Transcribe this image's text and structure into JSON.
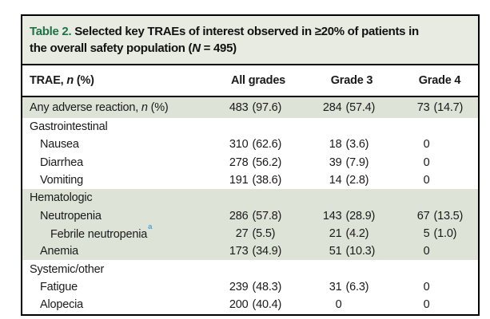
{
  "title": {
    "label": "Table 2.",
    "line1": "Selected key TRAEs of interest observed in ≥20% of patients in",
    "line2_pre": "the overall safety population (",
    "line2_italic": "N",
    "line2_post": " = 495)"
  },
  "colors": {
    "title_label_green": "#1e7245",
    "title_band_bg": "#e8ebe1",
    "highlight_band_green": "#dde4d7",
    "superscript_blue": "#4aa3d8",
    "border_black": "#000000"
  },
  "table": {
    "header": {
      "col1_pre": "TRAE, ",
      "col1_italic": "n",
      "col1_post": " (%)",
      "col2": "All grades",
      "col3": "Grade 3",
      "col4": "Grade 4"
    },
    "rows": [
      {
        "label_pre": "Any adverse reaction, ",
        "label_italic": "n",
        "label_post": " (%)",
        "label_sup": "",
        "indent": 0,
        "band": "green",
        "tall": true,
        "values": [
          {
            "n": "483",
            "p": "(97.6)"
          },
          {
            "n": "284",
            "p": "(57.4)"
          },
          {
            "n": "73",
            "p": "(14.7)"
          }
        ]
      },
      {
        "label_pre": "Gastrointestinal",
        "label_italic": "",
        "label_post": "",
        "label_sup": "",
        "indent": 0,
        "band": "white",
        "tall": false,
        "values": [
          null,
          null,
          null
        ]
      },
      {
        "label_pre": "Nausea",
        "label_italic": "",
        "label_post": "",
        "label_sup": "",
        "indent": 1,
        "band": "white",
        "tall": false,
        "values": [
          {
            "n": "310",
            "p": "(62.6)"
          },
          {
            "n": "18",
            "p": "(3.6)"
          },
          {
            "n": "0",
            "p": ""
          }
        ]
      },
      {
        "label_pre": "Diarrhea",
        "label_italic": "",
        "label_post": "",
        "label_sup": "",
        "indent": 1,
        "band": "white",
        "tall": false,
        "values": [
          {
            "n": "278",
            "p": "(56.2)"
          },
          {
            "n": "39",
            "p": "(7.9)"
          },
          {
            "n": "0",
            "p": ""
          }
        ]
      },
      {
        "label_pre": "Vomiting",
        "label_italic": "",
        "label_post": "",
        "label_sup": "",
        "indent": 1,
        "band": "white",
        "tall": false,
        "values": [
          {
            "n": "191",
            "p": "(38.6)"
          },
          {
            "n": "14",
            "p": "(2.8)"
          },
          {
            "n": "0",
            "p": ""
          }
        ]
      },
      {
        "label_pre": "Hematologic",
        "label_italic": "",
        "label_post": "",
        "label_sup": "",
        "indent": 0,
        "band": "green",
        "tall": false,
        "values": [
          null,
          null,
          null
        ]
      },
      {
        "label_pre": "Neutropenia",
        "label_italic": "",
        "label_post": "",
        "label_sup": "",
        "indent": 1,
        "band": "green",
        "tall": false,
        "values": [
          {
            "n": "286",
            "p": "(57.8)"
          },
          {
            "n": "143",
            "p": "(28.9)"
          },
          {
            "n": "67",
            "p": "(13.5)"
          }
        ]
      },
      {
        "label_pre": "Febrile neutropenia",
        "label_italic": "",
        "label_post": "",
        "label_sup": "a",
        "indent": 2,
        "band": "green",
        "tall": false,
        "values": [
          {
            "n": "27",
            "p": "(5.5)"
          },
          {
            "n": "21",
            "p": "(4.2)"
          },
          {
            "n": "5",
            "p": "(1.0)"
          }
        ]
      },
      {
        "label_pre": "Anemia",
        "label_italic": "",
        "label_post": "",
        "label_sup": "",
        "indent": 1,
        "band": "green",
        "tall": false,
        "values": [
          {
            "n": "173",
            "p": "(34.9)"
          },
          {
            "n": "51",
            "p": "(10.3)"
          },
          {
            "n": "0",
            "p": ""
          }
        ]
      },
      {
        "label_pre": "Systemic/other",
        "label_italic": "",
        "label_post": "",
        "label_sup": "",
        "indent": 0,
        "band": "white",
        "tall": false,
        "values": [
          null,
          null,
          null
        ]
      },
      {
        "label_pre": "Fatigue",
        "label_italic": "",
        "label_post": "",
        "label_sup": "",
        "indent": 1,
        "band": "white",
        "tall": false,
        "values": [
          {
            "n": "239",
            "p": "(48.3)"
          },
          {
            "n": "31",
            "p": "(6.3)"
          },
          {
            "n": "0",
            "p": ""
          }
        ]
      },
      {
        "label_pre": "Alopecia",
        "label_italic": "",
        "label_post": "",
        "label_sup": "",
        "indent": 1,
        "band": "white",
        "tall": false,
        "values": [
          {
            "n": "200",
            "p": "(40.4)"
          },
          {
            "n": "0",
            "p": ""
          },
          {
            "n": "0",
            "p": ""
          }
        ]
      }
    ]
  }
}
